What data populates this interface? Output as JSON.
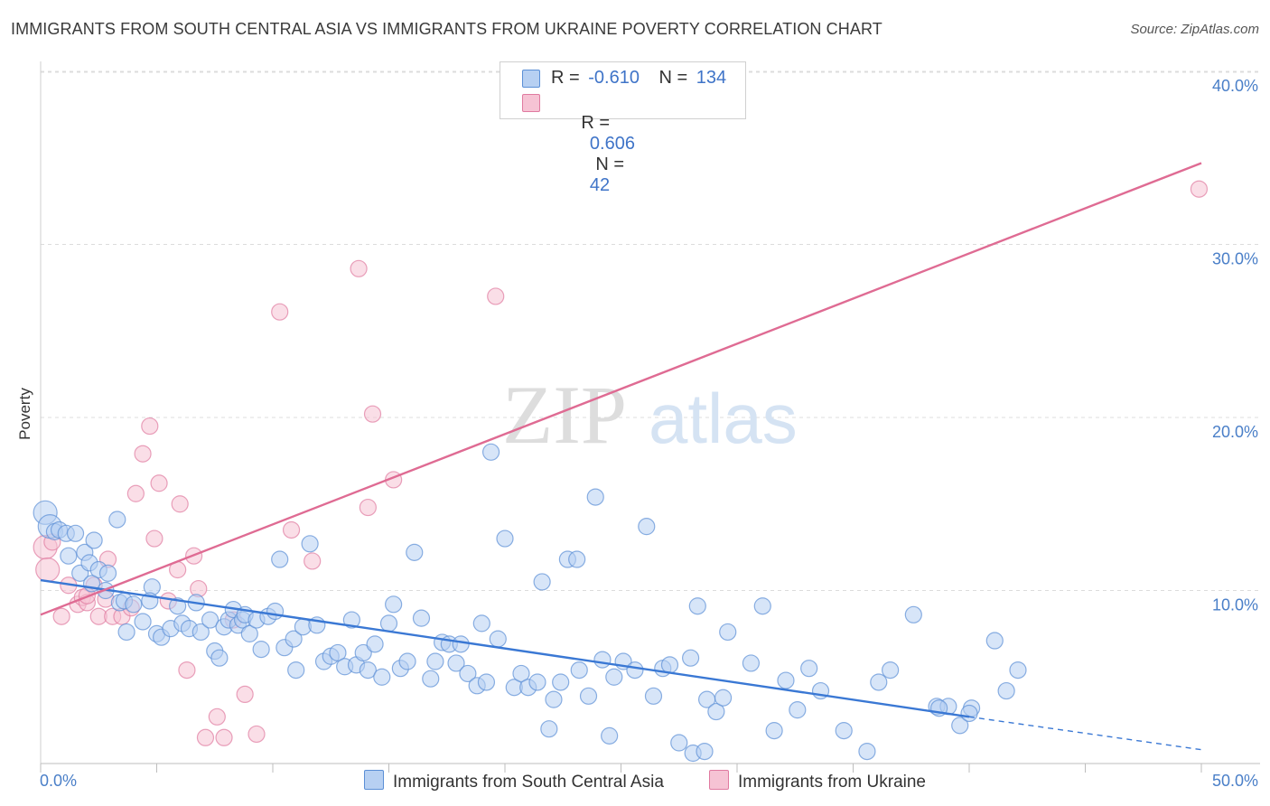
{
  "chart_data": {
    "type": "scatter",
    "title": "IMMIGRANTS FROM SOUTH CENTRAL ASIA VS IMMIGRANTS FROM UKRAINE POVERTY CORRELATION CHART",
    "source": "Source: ZipAtlas.com",
    "ylabel": "Poverty",
    "xlabel": "",
    "xlim": [
      0,
      50
    ],
    "ylim": [
      0,
      40
    ],
    "x_tick_labels": [
      "0.0%",
      "50.0%"
    ],
    "y_tick_labels": [
      "10.0%",
      "20.0%",
      "30.0%",
      "40.0%"
    ],
    "y_ticks": [
      10,
      20,
      30,
      40
    ],
    "watermark": [
      "ZIP",
      "atlas"
    ],
    "legend": {
      "rows": [
        {
          "r_label": "R =",
          "r_value": "-0.610",
          "n_label": "N =",
          "n_value": "134"
        },
        {
          "r_label": "R =",
          "r_value": " 0.606",
          "n_label": "N =",
          "n_value": " 42"
        }
      ]
    },
    "series": [
      {
        "name": "Immigrants from South Central Asia",
        "color": "#5b8fd6",
        "fill": "#b7d0f2",
        "trend": {
          "x0": 0,
          "y0": 10.6,
          "x1": 40,
          "y1": 2.7,
          "dash_to_x": 50,
          "dash_to_y": 0.8
        },
        "points": [
          [
            0.2,
            14.5
          ],
          [
            0.4,
            13.7
          ],
          [
            0.6,
            13.4
          ],
          [
            0.8,
            13.5
          ],
          [
            1.1,
            13.3
          ],
          [
            1.5,
            13.3
          ],
          [
            1.2,
            12.0
          ],
          [
            1.9,
            12.2
          ],
          [
            2.3,
            12.9
          ],
          [
            1.7,
            11.0
          ],
          [
            2.1,
            11.6
          ],
          [
            2.5,
            11.2
          ],
          [
            2.9,
            11.0
          ],
          [
            2.2,
            10.4
          ],
          [
            2.8,
            10.0
          ],
          [
            3.4,
            9.3
          ],
          [
            3.6,
            9.4
          ],
          [
            4.0,
            9.2
          ],
          [
            3.3,
            14.1
          ],
          [
            3.7,
            7.6
          ],
          [
            4.4,
            8.2
          ],
          [
            4.8,
            10.2
          ],
          [
            4.7,
            9.4
          ],
          [
            5.0,
            7.5
          ],
          [
            5.2,
            7.3
          ],
          [
            5.6,
            7.8
          ],
          [
            5.9,
            9.1
          ],
          [
            6.1,
            8.1
          ],
          [
            6.4,
            7.8
          ],
          [
            6.7,
            9.3
          ],
          [
            6.9,
            7.6
          ],
          [
            7.3,
            8.3
          ],
          [
            7.5,
            6.5
          ],
          [
            7.7,
            6.1
          ],
          [
            7.9,
            7.9
          ],
          [
            8.1,
            8.3
          ],
          [
            8.3,
            8.9
          ],
          [
            8.5,
            8.0
          ],
          [
            8.7,
            8.3
          ],
          [
            8.8,
            8.6
          ],
          [
            9.0,
            7.5
          ],
          [
            9.3,
            8.3
          ],
          [
            9.5,
            6.6
          ],
          [
            9.8,
            8.5
          ],
          [
            10.1,
            8.8
          ],
          [
            10.3,
            11.8
          ],
          [
            10.5,
            6.7
          ],
          [
            10.9,
            7.2
          ],
          [
            11.0,
            5.4
          ],
          [
            11.3,
            7.9
          ],
          [
            11.6,
            12.7
          ],
          [
            11.9,
            8.0
          ],
          [
            12.2,
            5.9
          ],
          [
            12.5,
            6.2
          ],
          [
            12.8,
            6.4
          ],
          [
            13.1,
            5.6
          ],
          [
            13.4,
            8.3
          ],
          [
            13.6,
            5.7
          ],
          [
            13.9,
            6.4
          ],
          [
            14.1,
            5.4
          ],
          [
            14.4,
            6.9
          ],
          [
            14.7,
            5.0
          ],
          [
            15.0,
            8.1
          ],
          [
            15.2,
            9.2
          ],
          [
            15.5,
            5.5
          ],
          [
            15.8,
            5.9
          ],
          [
            16.1,
            12.2
          ],
          [
            16.4,
            8.4
          ],
          [
            16.8,
            4.9
          ],
          [
            17.0,
            5.9
          ],
          [
            17.3,
            7.0
          ],
          [
            17.6,
            6.9
          ],
          [
            17.9,
            5.8
          ],
          [
            18.1,
            6.9
          ],
          [
            18.4,
            5.2
          ],
          [
            18.8,
            4.5
          ],
          [
            19.0,
            8.1
          ],
          [
            19.2,
            4.7
          ],
          [
            19.4,
            18.0
          ],
          [
            19.7,
            7.2
          ],
          [
            20.0,
            13.0
          ],
          [
            20.4,
            4.4
          ],
          [
            20.7,
            5.2
          ],
          [
            21.0,
            4.4
          ],
          [
            21.4,
            4.7
          ],
          [
            21.6,
            10.5
          ],
          [
            21.9,
            2.0
          ],
          [
            22.1,
            3.7
          ],
          [
            22.4,
            4.7
          ],
          [
            22.7,
            11.8
          ],
          [
            23.1,
            11.8
          ],
          [
            23.2,
            5.4
          ],
          [
            23.6,
            3.9
          ],
          [
            23.9,
            15.4
          ],
          [
            24.2,
            6.0
          ],
          [
            24.5,
            1.6
          ],
          [
            24.7,
            5.0
          ],
          [
            25.1,
            5.9
          ],
          [
            25.6,
            5.4
          ],
          [
            26.1,
            13.7
          ],
          [
            26.4,
            3.9
          ],
          [
            26.8,
            5.5
          ],
          [
            27.1,
            5.7
          ],
          [
            27.5,
            1.2
          ],
          [
            28.0,
            6.1
          ],
          [
            28.3,
            9.1
          ],
          [
            28.7,
            3.7
          ],
          [
            29.1,
            3.0
          ],
          [
            29.4,
            3.8
          ],
          [
            29.6,
            7.6
          ],
          [
            28.1,
            0.6
          ],
          [
            28.6,
            0.7
          ],
          [
            30.6,
            5.8
          ],
          [
            31.1,
            9.1
          ],
          [
            31.6,
            1.9
          ],
          [
            32.1,
            4.8
          ],
          [
            32.6,
            3.1
          ],
          [
            33.1,
            5.5
          ],
          [
            33.6,
            4.2
          ],
          [
            34.6,
            1.9
          ],
          [
            35.6,
            0.7
          ],
          [
            36.1,
            4.7
          ],
          [
            36.6,
            5.4
          ],
          [
            37.6,
            8.6
          ],
          [
            38.6,
            3.3
          ],
          [
            39.1,
            3.3
          ],
          [
            39.6,
            2.2
          ],
          [
            40.1,
            3.2
          ],
          [
            41.1,
            7.1
          ],
          [
            41.6,
            4.2
          ],
          [
            42.1,
            5.4
          ],
          [
            40.0,
            2.9
          ],
          [
            38.7,
            3.2
          ]
        ]
      },
      {
        "name": "Immigrants from Ukraine",
        "color": "#e07aa0",
        "fill": "#f6c3d4",
        "trend": {
          "x0": 0,
          "y0": 8.6,
          "x1": 50,
          "y1": 34.7
        },
        "points": [
          [
            0.2,
            12.5
          ],
          [
            0.3,
            11.2
          ],
          [
            0.5,
            12.8
          ],
          [
            0.9,
            8.5
          ],
          [
            1.2,
            10.3
          ],
          [
            1.6,
            9.2
          ],
          [
            1.8,
            9.6
          ],
          [
            2.0,
            9.3
          ],
          [
            2.3,
            10.3
          ],
          [
            2.5,
            8.5
          ],
          [
            2.8,
            9.5
          ],
          [
            2.9,
            11.8
          ],
          [
            3.1,
            8.5
          ],
          [
            3.5,
            8.5
          ],
          [
            3.9,
            9.0
          ],
          [
            4.1,
            15.6
          ],
          [
            4.4,
            17.9
          ],
          [
            4.7,
            19.5
          ],
          [
            4.9,
            13.0
          ],
          [
            5.1,
            16.2
          ],
          [
            5.5,
            9.4
          ],
          [
            5.9,
            11.2
          ],
          [
            6.0,
            15.0
          ],
          [
            6.3,
            5.4
          ],
          [
            6.6,
            12.0
          ],
          [
            6.8,
            10.1
          ],
          [
            7.1,
            1.5
          ],
          [
            7.6,
            2.7
          ],
          [
            7.9,
            1.5
          ],
          [
            8.3,
            8.3
          ],
          [
            8.8,
            4.0
          ],
          [
            9.3,
            1.7
          ],
          [
            10.3,
            26.1
          ],
          [
            10.8,
            13.5
          ],
          [
            11.7,
            11.7
          ],
          [
            13.7,
            28.6
          ],
          [
            14.1,
            14.8
          ],
          [
            14.3,
            20.2
          ],
          [
            15.2,
            16.4
          ],
          [
            19.6,
            27.0
          ],
          [
            49.9,
            33.2
          ],
          [
            2.0,
            9.7
          ]
        ]
      }
    ]
  }
}
